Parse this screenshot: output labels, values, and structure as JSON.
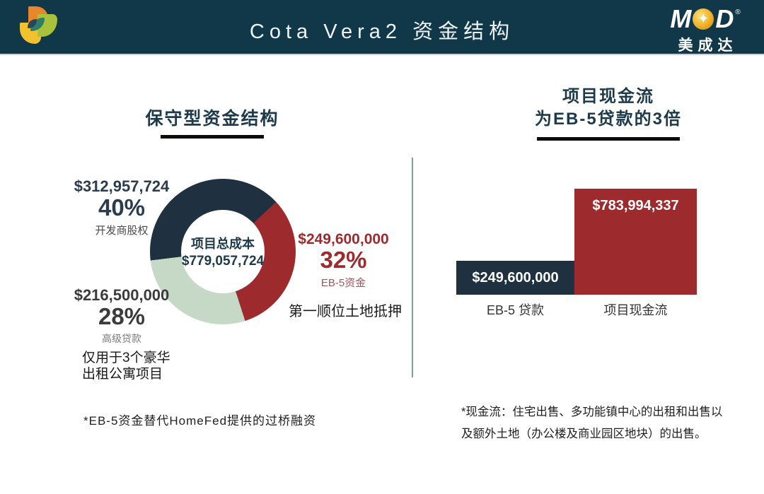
{
  "header": {
    "title": "Cota Vera2 资金结构",
    "brand": {
      "letter_m": "M",
      "letter_d": "D",
      "star": "✦",
      "registered": "®",
      "name_cn": "美成达"
    }
  },
  "left": {
    "title": "保守型资金结构",
    "donut_center": {
      "label": "项目总成本",
      "value": "$779,057,724"
    },
    "segments": [
      {
        "amount": "$312,957,724",
        "percent": "40%",
        "name": "开发商股权"
      },
      {
        "amount": "$249,600,000",
        "percent": "32%",
        "name": "EB-5资金",
        "extra": "第一顺位土地抵押"
      },
      {
        "amount": "$216,500,000",
        "percent": "28%",
        "name": "高级贷款",
        "extra_line1": "仅用于3个豪华",
        "extra_line2": "出租公寓项目"
      }
    ],
    "note": "*EB-5资金替代HomeFed提供的过桥融资"
  },
  "right": {
    "title_line1": "项目现金流",
    "title_line2": "为EB-5贷款的3倍",
    "bar_values": [
      "$249,600,000",
      "$783,994,337"
    ],
    "bar_labels": [
      "EB-5 贷款",
      "项目现金流"
    ],
    "note": "*现金流：住宅出售、多功能镇中心的出租和出售以及额外土地（办公楼及商业园区地块）的出售。"
  },
  "chart_data": [
    {
      "type": "pie",
      "title": "保守型资金结构",
      "donut": true,
      "center_label": "项目总成本",
      "center_value": 779057724,
      "categories": [
        "开发商股权",
        "EB-5资金",
        "高级贷款"
      ],
      "values": [
        312957724,
        249600000,
        216500000
      ],
      "percents": [
        40,
        32,
        28
      ],
      "colors": [
        "#1f3140",
        "#9d2b2e",
        "#c5d9c6"
      ],
      "annotations": [
        "第一顺位土地抵押",
        "仅用于3个豪华出租公寓项目"
      ],
      "start_angle_deg": 47,
      "draw_order": [
        1,
        2,
        0
      ]
    },
    {
      "type": "bar",
      "title": "项目现金流为EB-5贷款的3倍",
      "categories": [
        "EB-5 贷款",
        "项目现金流"
      ],
      "values": [
        249600000,
        783994337
      ],
      "value_labels": [
        "$249,600,000",
        "$783,994,337"
      ],
      "colors": [
        "#1f3140",
        "#9d2b2e"
      ],
      "legend": false,
      "grid": false
    }
  ]
}
